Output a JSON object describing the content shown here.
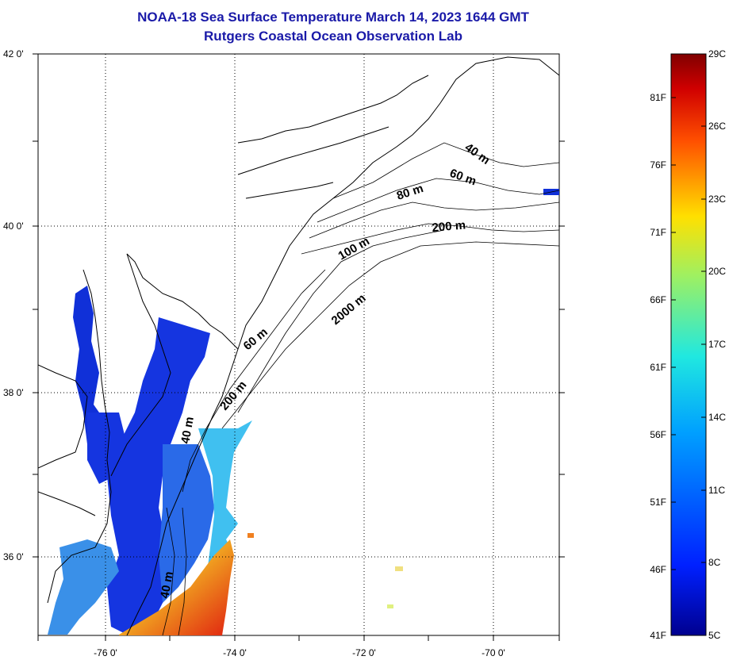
{
  "title": {
    "line1": "NOAA-18 Sea Surface Temperature March 14, 2023 1644 GMT",
    "line2": "Rutgers Coastal Ocean Observation Lab"
  },
  "map": {
    "lat_labels": [
      "42 0'",
      "40 0'",
      "38 0'",
      "36 0'"
    ],
    "lon_labels": [
      "-76 0'",
      "-74 0'",
      "-72 0'",
      "-70 0'"
    ],
    "contour_labels": [
      "40 m",
      "60 m",
      "80 m",
      "200 m",
      "100 m",
      "2000 m",
      "60 m",
      "200 m",
      "40 m",
      "40 m"
    ],
    "colors": {
      "cold": "#1030d8",
      "mid_blue": "#2a6ae8",
      "cyan": "#40c0f0",
      "yellow": "#f0d020",
      "orange": "#f08020",
      "red": "#e02010"
    }
  },
  "colorbar": {
    "fahrenheit_labels": [
      "81F",
      "76F",
      "71F",
      "66F",
      "61F",
      "56F",
      "51F",
      "46F",
      "41F"
    ],
    "celsius_labels": [
      "29C",
      "26C",
      "23C",
      "20C",
      "17C",
      "14C",
      "11C",
      "8C",
      "5C"
    ],
    "range_c": [
      5,
      29
    ]
  }
}
